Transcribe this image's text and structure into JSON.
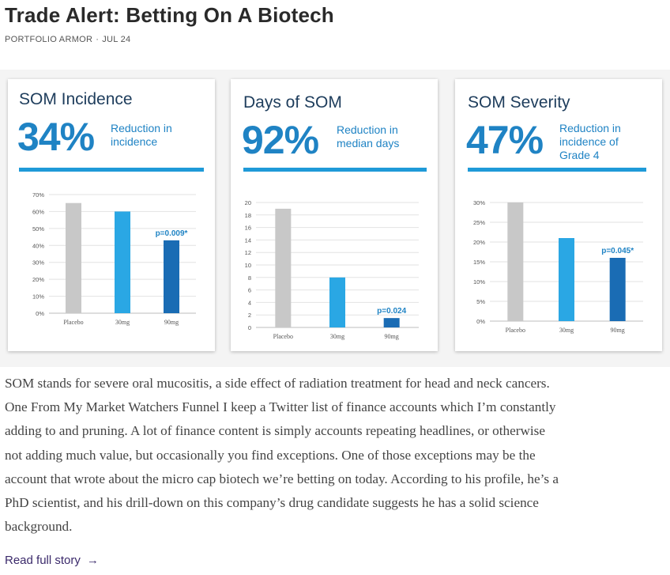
{
  "article": {
    "title": "Trade Alert: Betting On A Biotech",
    "source": "PORTFOLIO ARMOR",
    "separator": "·",
    "date": "JUL 24"
  },
  "colors": {
    "placebo": "#c8c8c8",
    "dose_30mg": "#2aa7e4",
    "dose_90mg": "#1a6cb4",
    "accent": "#1f83c4",
    "rule": "#1f9ad8"
  },
  "panels": [
    {
      "title": "SOM Incidence",
      "big_number": "34%",
      "description_lines": [
        "Reduction in",
        "incidence"
      ],
      "chart_data": {
        "type": "bar",
        "categories": [
          "Placebo",
          "30mg",
          "90mg"
        ],
        "values": [
          65,
          60,
          43
        ],
        "ylim": [
          0,
          70
        ],
        "yticks": [
          0,
          10,
          20,
          30,
          40,
          50,
          60,
          70
        ],
        "ytick_labels": [
          "0%",
          "10%",
          "20%",
          "30%",
          "40%",
          "50%",
          "60%",
          "70%"
        ],
        "annotation": "p=0.009*",
        "grid": true
      }
    },
    {
      "title": "Days of SOM",
      "big_number": "92%",
      "description_lines": [
        "Reduction in",
        "median days"
      ],
      "chart_data": {
        "type": "bar",
        "categories": [
          "Placebo",
          "30mg",
          "90mg"
        ],
        "values": [
          19,
          8,
          1.5
        ],
        "ylim": [
          0,
          20
        ],
        "yticks": [
          0,
          2,
          4,
          6,
          8,
          10,
          12,
          14,
          16,
          18,
          20
        ],
        "ytick_labels": [
          "0",
          "2",
          "4",
          "6",
          "8",
          "10",
          "12",
          "14",
          "16",
          "18",
          "20"
        ],
        "annotation": "p=0.024",
        "grid": true
      }
    },
    {
      "title": "SOM Severity",
      "big_number": "47%",
      "description_lines": [
        "Reduction in",
        "incidence of",
        "Grade 4"
      ],
      "chart_data": {
        "type": "bar",
        "categories": [
          "Placebo",
          "30mg",
          "90mg"
        ],
        "values": [
          30,
          21,
          16
        ],
        "ylim": [
          0,
          30
        ],
        "yticks": [
          0,
          5,
          10,
          15,
          20,
          25,
          30
        ],
        "ytick_labels": [
          "0%",
          "5%",
          "10%",
          "15%",
          "20%",
          "25%",
          "30%"
        ],
        "annotation": "p=0.045*",
        "grid": true
      }
    }
  ],
  "story": {
    "lines": [
      "SOM stands for severe oral mucositis, a side effect of radiation treatment for head and neck cancers.",
      "One From My Market Watchers Funnel I keep a Twitter list of finance accounts which I’m constantly",
      "adding to and pruning. A lot of finance content is simply accounts repeating headlines, or otherwise",
      "not adding much value, but occasionally you find exceptions. One of those exceptions may be the",
      "account that wrote about the micro cap biotech we’re betting on today. According to his profile, he’s a",
      "PhD scientist, and his drill-down on this company’s drug candidate suggests he has a solid science",
      "background."
    ]
  },
  "read_more": {
    "label": "Read full story",
    "arrow": "→"
  }
}
